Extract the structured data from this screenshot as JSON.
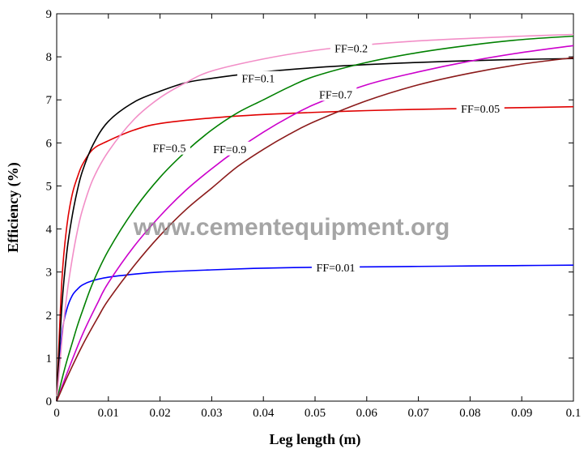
{
  "chart_data": {
    "type": "line",
    "title": "",
    "xlabel": "Leg length (m)",
    "ylabel": "Efficiency (%)",
    "xlim": [
      0,
      0.1
    ],
    "ylim": [
      0,
      9
    ],
    "xticks": [
      0,
      0.01,
      0.02,
      0.03,
      0.04,
      0.05,
      0.06,
      0.07,
      0.08,
      0.09,
      0.1
    ],
    "xtick_labels": [
      "0",
      "0.01",
      "0.02",
      "0.03",
      "0.04",
      "0.05",
      "0.06",
      "0.07",
      "0.08",
      "0.09",
      "0.1"
    ],
    "yticks": [
      0,
      1,
      2,
      3,
      4,
      5,
      6,
      7,
      8,
      9
    ],
    "ytick_labels": [
      "0",
      "1",
      "2",
      "3",
      "4",
      "5",
      "6",
      "7",
      "8",
      "9"
    ],
    "grid": false,
    "legend": "none",
    "watermark": "www.cementequipment.org",
    "series": [
      {
        "name": "FF=0.01",
        "color": "#0000ff",
        "label_at": [
          0.054,
          3.11
        ],
        "points": [
          [
            0,
            0
          ],
          [
            0.001,
            1.55
          ],
          [
            0.002,
            2.15
          ],
          [
            0.003,
            2.45
          ],
          [
            0.004,
            2.6
          ],
          [
            0.005,
            2.7
          ],
          [
            0.007,
            2.8
          ],
          [
            0.01,
            2.88
          ],
          [
            0.015,
            2.95
          ],
          [
            0.02,
            3.0
          ],
          [
            0.03,
            3.05
          ],
          [
            0.04,
            3.09
          ],
          [
            0.05,
            3.11
          ],
          [
            0.06,
            3.12
          ],
          [
            0.07,
            3.13
          ],
          [
            0.08,
            3.14
          ],
          [
            0.09,
            3.15
          ],
          [
            0.1,
            3.16
          ]
        ]
      },
      {
        "name": "FF=0.05",
        "color": "#e00000",
        "label_at": [
          0.082,
          6.8
        ],
        "points": [
          [
            0,
            0
          ],
          [
            0.001,
            2.8
          ],
          [
            0.002,
            4.1
          ],
          [
            0.003,
            4.8
          ],
          [
            0.004,
            5.2
          ],
          [
            0.005,
            5.5
          ],
          [
            0.007,
            5.85
          ],
          [
            0.01,
            6.05
          ],
          [
            0.015,
            6.3
          ],
          [
            0.02,
            6.45
          ],
          [
            0.03,
            6.58
          ],
          [
            0.04,
            6.66
          ],
          [
            0.05,
            6.71
          ],
          [
            0.06,
            6.75
          ],
          [
            0.07,
            6.78
          ],
          [
            0.08,
            6.8
          ],
          [
            0.09,
            6.82
          ],
          [
            0.1,
            6.84
          ]
        ]
      },
      {
        "name": "FF=0.1",
        "color": "#000000",
        "label_at": [
          0.039,
          7.5
        ],
        "points": [
          [
            0,
            0
          ],
          [
            0.001,
            2.2
          ],
          [
            0.002,
            3.5
          ],
          [
            0.003,
            4.3
          ],
          [
            0.004,
            4.9
          ],
          [
            0.005,
            5.35
          ],
          [
            0.007,
            5.95
          ],
          [
            0.01,
            6.5
          ],
          [
            0.015,
            6.95
          ],
          [
            0.02,
            7.2
          ],
          [
            0.025,
            7.4
          ],
          [
            0.03,
            7.5
          ],
          [
            0.04,
            7.65
          ],
          [
            0.05,
            7.75
          ],
          [
            0.06,
            7.82
          ],
          [
            0.07,
            7.87
          ],
          [
            0.08,
            7.91
          ],
          [
            0.09,
            7.94
          ],
          [
            0.1,
            7.96
          ]
        ]
      },
      {
        "name": "FF=0.2",
        "color": "#f28ec7",
        "label_at": [
          0.057,
          8.2
        ],
        "points": [
          [
            0,
            0
          ],
          [
            0.001,
            1.4
          ],
          [
            0.002,
            2.5
          ],
          [
            0.003,
            3.3
          ],
          [
            0.004,
            3.95
          ],
          [
            0.005,
            4.45
          ],
          [
            0.007,
            5.15
          ],
          [
            0.01,
            5.8
          ],
          [
            0.015,
            6.55
          ],
          [
            0.02,
            7.05
          ],
          [
            0.025,
            7.4
          ],
          [
            0.03,
            7.67
          ],
          [
            0.04,
            7.95
          ],
          [
            0.05,
            8.15
          ],
          [
            0.06,
            8.28
          ],
          [
            0.07,
            8.37
          ],
          [
            0.08,
            8.43
          ],
          [
            0.09,
            8.48
          ],
          [
            0.1,
            8.52
          ]
        ]
      },
      {
        "name": "FF=0.5",
        "color": "#008000",
        "label_at": [
          0.0218,
          5.88
        ],
        "points": [
          [
            0,
            0
          ],
          [
            0.001,
            0.5
          ],
          [
            0.002,
            0.95
          ],
          [
            0.003,
            1.35
          ],
          [
            0.004,
            1.75
          ],
          [
            0.005,
            2.1
          ],
          [
            0.007,
            2.75
          ],
          [
            0.01,
            3.5
          ],
          [
            0.015,
            4.45
          ],
          [
            0.02,
            5.2
          ],
          [
            0.025,
            5.8
          ],
          [
            0.03,
            6.3
          ],
          [
            0.035,
            6.7
          ],
          [
            0.04,
            7.0
          ],
          [
            0.045,
            7.3
          ],
          [
            0.05,
            7.55
          ],
          [
            0.06,
            7.87
          ],
          [
            0.07,
            8.1
          ],
          [
            0.08,
            8.27
          ],
          [
            0.09,
            8.4
          ],
          [
            0.1,
            8.48
          ]
        ]
      },
      {
        "name": "FF=0.7",
        "color": "#cc00cc",
        "label_at": [
          0.054,
          7.13
        ],
        "points": [
          [
            0,
            0
          ],
          [
            0.002,
            0.65
          ],
          [
            0.005,
            1.55
          ],
          [
            0.008,
            2.3
          ],
          [
            0.01,
            2.75
          ],
          [
            0.015,
            3.6
          ],
          [
            0.02,
            4.3
          ],
          [
            0.025,
            4.9
          ],
          [
            0.03,
            5.4
          ],
          [
            0.035,
            5.85
          ],
          [
            0.04,
            6.25
          ],
          [
            0.045,
            6.6
          ],
          [
            0.05,
            6.9
          ],
          [
            0.06,
            7.35
          ],
          [
            0.07,
            7.65
          ],
          [
            0.08,
            7.9
          ],
          [
            0.09,
            8.1
          ],
          [
            0.1,
            8.26
          ]
        ]
      },
      {
        "name": "FF=0.9",
        "color": "#8b1a1a",
        "label_at": [
          0.0335,
          5.86
        ],
        "points": [
          [
            0,
            0
          ],
          [
            0.002,
            0.55
          ],
          [
            0.005,
            1.3
          ],
          [
            0.008,
            1.95
          ],
          [
            0.01,
            2.35
          ],
          [
            0.015,
            3.15
          ],
          [
            0.02,
            3.85
          ],
          [
            0.025,
            4.45
          ],
          [
            0.03,
            4.95
          ],
          [
            0.035,
            5.45
          ],
          [
            0.04,
            5.85
          ],
          [
            0.045,
            6.2
          ],
          [
            0.05,
            6.5
          ],
          [
            0.06,
            6.98
          ],
          [
            0.07,
            7.35
          ],
          [
            0.08,
            7.62
          ],
          [
            0.09,
            7.83
          ],
          [
            0.1,
            7.98
          ]
        ]
      }
    ]
  }
}
